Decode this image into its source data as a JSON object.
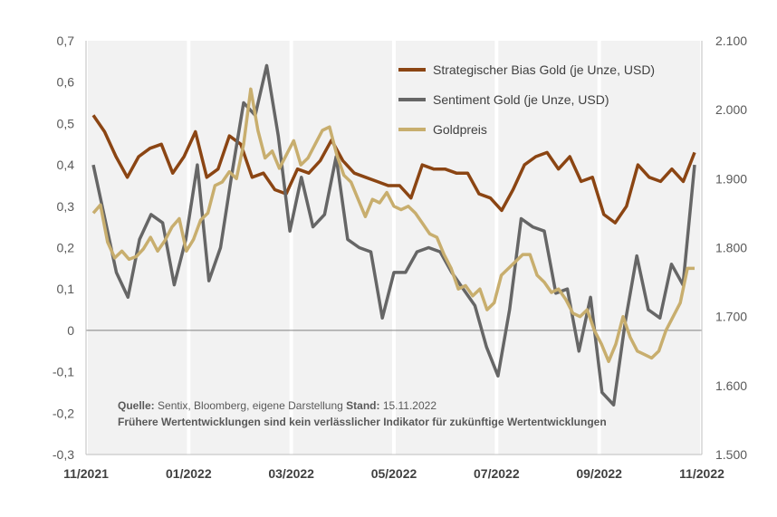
{
  "chart_data": {
    "type": "line",
    "title": "",
    "x_labels": [
      "11/2021",
      "01/2022",
      "03/2022",
      "05/2022",
      "07/2022",
      "09/2022",
      "11/2022"
    ],
    "y_left": {
      "min": -0.3,
      "max": 0.7,
      "step": 0.1,
      "ticks": [
        "0,7",
        "0,6",
        "0,5",
        "0,4",
        "0,3",
        "0,2",
        "0,1",
        "0",
        "-0,1",
        "-0,2",
        "-0,3"
      ]
    },
    "y_right": {
      "min": 1500,
      "max": 2100,
      "step": 100,
      "ticks": [
        "2.100",
        "2.000",
        "1.900",
        "1.800",
        "1.700",
        "1.600",
        "1.500"
      ]
    },
    "series": [
      {
        "name": "Strategischer Bias Gold (je Unze, USD)",
        "axis": "left",
        "color": "#8B4513",
        "values": [
          0.52,
          0.48,
          0.42,
          0.37,
          0.42,
          0.44,
          0.45,
          0.38,
          0.42,
          0.48,
          0.37,
          0.39,
          0.47,
          0.45,
          0.37,
          0.38,
          0.34,
          0.33,
          0.39,
          0.38,
          0.41,
          0.46,
          0.41,
          0.38,
          0.37,
          0.36,
          0.35,
          0.35,
          0.32,
          0.4,
          0.39,
          0.39,
          0.38,
          0.38,
          0.33,
          0.32,
          0.29,
          0.34,
          0.4,
          0.42,
          0.43,
          0.39,
          0.42,
          0.36,
          0.37,
          0.28,
          0.26,
          0.3,
          0.4,
          0.37,
          0.36,
          0.39,
          0.36,
          0.43
        ]
      },
      {
        "name": "Sentiment Gold (je Unze, USD)",
        "axis": "left",
        "color": "#666666",
        "values": [
          0.4,
          0.27,
          0.14,
          0.08,
          0.22,
          0.28,
          0.26,
          0.11,
          0.22,
          0.4,
          0.12,
          0.2,
          0.38,
          0.55,
          0.52,
          0.64,
          0.47,
          0.24,
          0.37,
          0.25,
          0.28,
          0.42,
          0.22,
          0.2,
          0.19,
          0.03,
          0.14,
          0.14,
          0.19,
          0.2,
          0.19,
          0.14,
          0.1,
          0.06,
          -0.04,
          -0.11,
          0.05,
          0.27,
          0.25,
          0.24,
          0.09,
          0.1,
          -0.05,
          0.08,
          -0.15,
          -0.18,
          0.02,
          0.18,
          0.05,
          0.03,
          0.16,
          0.11,
          0.4
        ]
      },
      {
        "name": "Goldpreis",
        "axis": "right",
        "color": "#C8AE6E",
        "values": [
          1850,
          1862,
          1808,
          1785,
          1795,
          1783,
          1787,
          1798,
          1815,
          1795,
          1810,
          1830,
          1842,
          1795,
          1812,
          1840,
          1850,
          1890,
          1895,
          1910,
          1900,
          1950,
          2030,
          1970,
          1930,
          1940,
          1915,
          1935,
          1955,
          1920,
          1930,
          1950,
          1970,
          1975,
          1935,
          1905,
          1895,
          1870,
          1845,
          1870,
          1865,
          1880,
          1860,
          1855,
          1860,
          1850,
          1835,
          1820,
          1815,
          1790,
          1770,
          1740,
          1745,
          1730,
          1740,
          1710,
          1720,
          1760,
          1770,
          1780,
          1790,
          1790,
          1760,
          1750,
          1735,
          1740,
          1725,
          1705,
          1700,
          1710,
          1680,
          1660,
          1635,
          1660,
          1700,
          1670,
          1650,
          1645,
          1640,
          1650,
          1680,
          1700,
          1720,
          1770,
          1770
        ]
      }
    ],
    "x_gridlines": "vertical white bands at month boundaries"
  },
  "source": {
    "label": "Quelle:",
    "text": " Sentix, Bloomberg, eigene Darstellung ",
    "stand_label": "Stand:",
    "stand_value": " 15.11.2022",
    "disclaimer": "Frühere Wertentwicklungen sind kein verlässlicher Indikator für zukünftige Wertentwicklungen"
  },
  "colors": {
    "plot_bg": "#F2F2F2",
    "zero_line": "#808080",
    "axis_text": "#595959"
  }
}
